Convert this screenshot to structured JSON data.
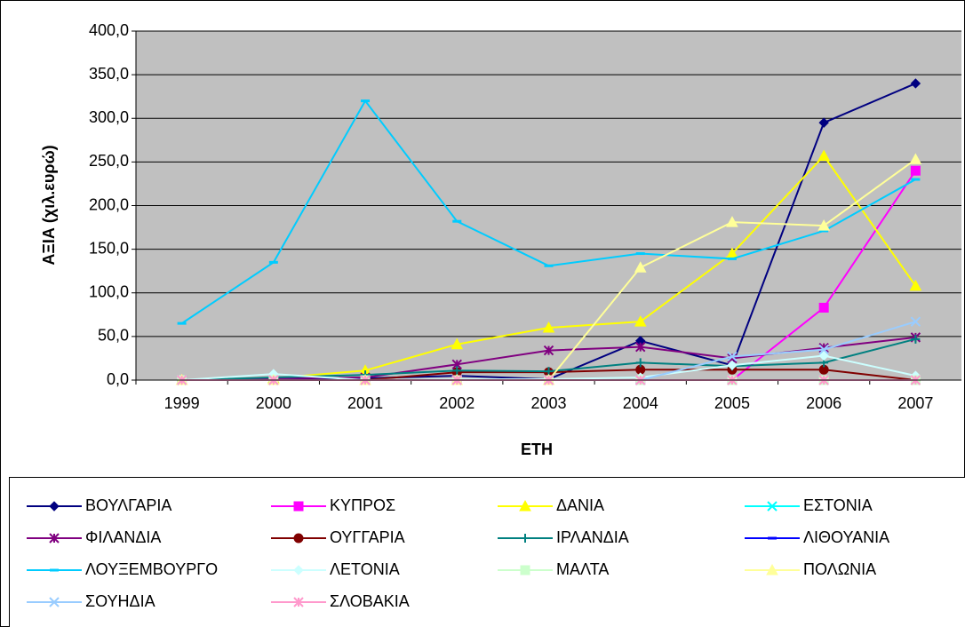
{
  "chart_data": {
    "type": "line",
    "ylabel": "ΑΞΙΑ (χιλ.ευρώ)",
    "xlabel": "ΕΤΗ",
    "categories": [
      "1999",
      "2000",
      "2001",
      "2002",
      "2003",
      "2004",
      "2005",
      "2006",
      "2007"
    ],
    "ylim": [
      0,
      400
    ],
    "yticks": [
      {
        "value": 0,
        "label": "0,0"
      },
      {
        "value": 50,
        "label": "50,0"
      },
      {
        "value": 100,
        "label": "100,0"
      },
      {
        "value": 150,
        "label": "150,0"
      },
      {
        "value": 200,
        "label": "200,0"
      },
      {
        "value": 250,
        "label": "250,0"
      },
      {
        "value": 300,
        "label": "300,0"
      },
      {
        "value": 350,
        "label": "350,0"
      },
      {
        "value": 400,
        "label": "400,0"
      }
    ],
    "grid": true,
    "legend": "bottom",
    "series": [
      {
        "name": "ΒΟΥΛΓΑΡΙΑ",
        "color": "#000080",
        "marker": "diamond",
        "values": [
          0,
          0,
          2,
          5,
          1,
          45,
          17,
          295,
          340
        ]
      },
      {
        "name": "ΚΥΠΡΟΣ",
        "color": "#ff00ff",
        "marker": "square",
        "values": [
          0,
          0,
          0,
          0,
          0,
          0,
          0,
          83,
          240
        ]
      },
      {
        "name": "ΔΑΝΙΑ",
        "color": "#ffff00",
        "marker": "triangle",
        "values": [
          0,
          2,
          11,
          41,
          60,
          67,
          145,
          257,
          108
        ]
      },
      {
        "name": "ΕΣΤΟΝΙΑ",
        "color": "#00ffff",
        "marker": "x",
        "values": [
          0,
          0,
          0,
          0,
          0,
          0,
          0,
          0,
          0
        ]
      },
      {
        "name": "ΦΙΛΑΝΔΙΑ",
        "color": "#800080",
        "marker": "star",
        "values": [
          0,
          2,
          3,
          18,
          34,
          38,
          25,
          37,
          49
        ]
      },
      {
        "name": "ΟΥΓΓΑΡΙΑ",
        "color": "#800000",
        "marker": "circle",
        "values": [
          0,
          0,
          0,
          9,
          9,
          12,
          12,
          12,
          0
        ]
      },
      {
        "name": "ΙΡΛΑΝΔΙΑ",
        "color": "#008080",
        "marker": "plus",
        "values": [
          0,
          3,
          6,
          11,
          10,
          20,
          16,
          20,
          47
        ]
      },
      {
        "name": "ΛΙΘΟΥΑΝΙΑ",
        "color": "#0000ff",
        "marker": "dash",
        "values": [
          0,
          0,
          0,
          0,
          0,
          0,
          0,
          0,
          0
        ]
      },
      {
        "name": "ΛΟΥΞΕΜΒΟΥΡΓΟ",
        "color": "#00ccff",
        "marker": "dash",
        "values": [
          65,
          135,
          320,
          182,
          131,
          145,
          139,
          171,
          230
        ]
      },
      {
        "name": "ΛΕΤΟΝΙΑ",
        "color": "#ccffff",
        "marker": "diamond",
        "values": [
          0,
          7,
          0,
          1,
          1,
          3,
          17,
          28,
          5
        ]
      },
      {
        "name": "ΜΑΛΤΑ",
        "color": "#ccffcc",
        "marker": "square",
        "values": [
          0,
          0,
          0,
          0,
          0,
          0,
          0,
          0,
          0
        ]
      },
      {
        "name": "ΠΟΛΩΝΙΑ",
        "color": "#ffff99",
        "marker": "triangle",
        "values": [
          0,
          0,
          0,
          0,
          0,
          129,
          181,
          177,
          253
        ]
      },
      {
        "name": "ΣΟΥΗΔΙΑ",
        "color": "#99ccff",
        "marker": "x",
        "values": [
          0,
          0,
          0,
          0,
          0,
          0,
          27,
          35,
          67
        ]
      },
      {
        "name": "ΣΛΟΒΑΚΙΑ",
        "color": "#ff99cc",
        "marker": "star",
        "values": [
          0,
          0,
          0,
          0,
          0,
          0,
          0,
          0,
          0
        ]
      }
    ]
  }
}
